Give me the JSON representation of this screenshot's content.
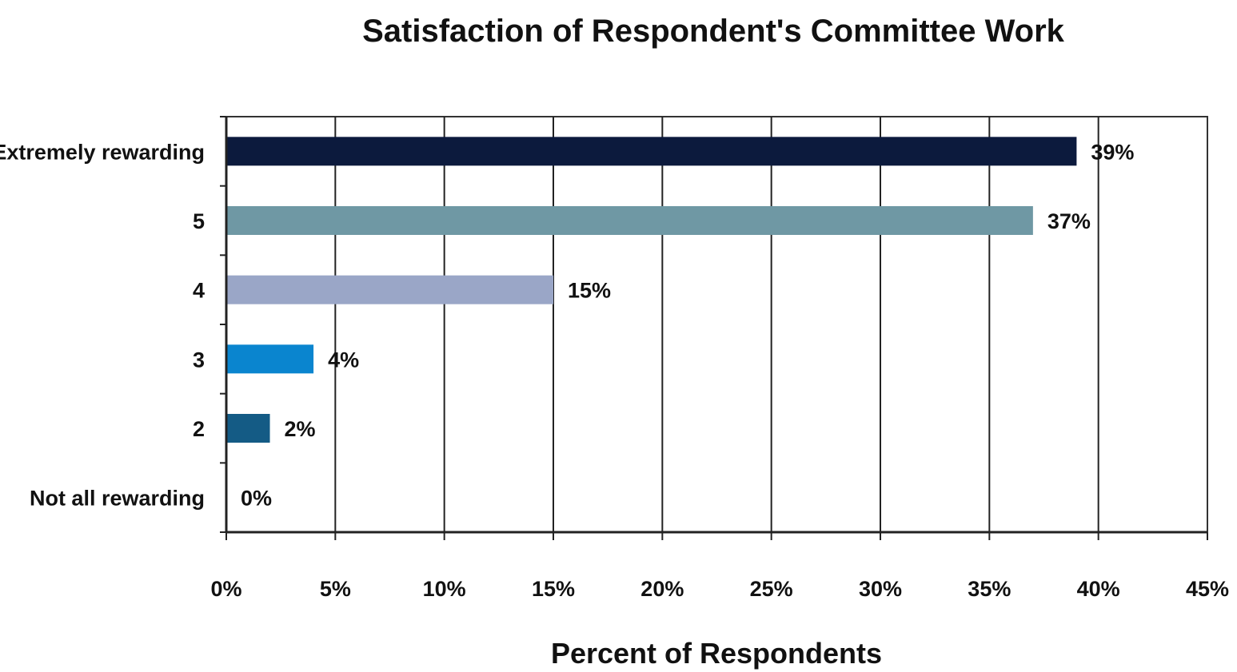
{
  "chart_data": {
    "type": "bar",
    "orientation": "horizontal",
    "title": "Satisfaction of Respondent's Committee Work",
    "xlabel": "Percent of Respondents",
    "ylabel": "",
    "categories": [
      "Extremely rewarding",
      "5",
      "4",
      "3",
      "2",
      "Not all rewarding"
    ],
    "values": [
      39,
      37,
      15,
      4,
      2,
      0
    ],
    "data_labels": [
      "39%",
      "37%",
      "15%",
      "4%",
      "2%",
      "0%"
    ],
    "bar_colors": [
      "#0c1a3d",
      "#6f98a4",
      "#9aa6c7",
      "#0a85cf",
      "#145b85",
      "#ffffff"
    ],
    "xlim": [
      0,
      45
    ],
    "x_ticks": [
      0,
      5,
      10,
      15,
      20,
      25,
      30,
      35,
      40,
      45
    ],
    "x_tick_labels": [
      "0%",
      "5%",
      "10%",
      "15%",
      "20%",
      "25%",
      "30%",
      "35%",
      "40%",
      "45%"
    ],
    "grid": true,
    "legend": "none"
  }
}
